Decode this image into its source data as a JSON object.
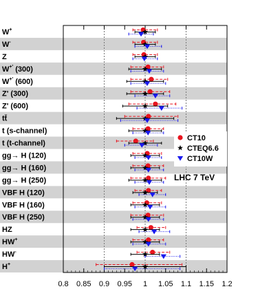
{
  "chart_data": {
    "type": "scatter",
    "orientation": "horizontal",
    "annotation": "LHC 7 TeV",
    "xlim": [
      0.8,
      1.2
    ],
    "xticks": [
      "0.8",
      "0.85",
      "0.9",
      "0.95",
      "1",
      "1.05",
      "1.1",
      "1.15",
      "1.2"
    ],
    "reference_lines": [
      0.9,
      1.0,
      1.1
    ],
    "legend_position": "right",
    "colors": {
      "CT10": "#e8141e",
      "CTEQ6.6": "#000000",
      "CT10W": "#1a1aee",
      "band": "#d2d2d2"
    },
    "categories": [
      {
        "base": "W",
        "sup": "+",
        "rest": ""
      },
      {
        "base": "W",
        "sup": "-",
        "rest": ""
      },
      {
        "base": "Z",
        "sup": "",
        "rest": ""
      },
      {
        "base": "W",
        "sup": "+'",
        "rest": " (300)"
      },
      {
        "base": "W",
        "sup": "+'",
        "rest": " (600)"
      },
      {
        "base": "Z'",
        "sup": "",
        "rest": " (300)"
      },
      {
        "base": "Z'",
        "sup": "",
        "rest": " (600)"
      },
      {
        "base": "tt̄",
        "sup": "",
        "rest": ""
      },
      {
        "base": "t (s-channel)",
        "sup": "",
        "rest": ""
      },
      {
        "base": "t (t-channel)",
        "sup": "",
        "rest": ""
      },
      {
        "base": "gg→ H (120)",
        "sup": "",
        "rest": ""
      },
      {
        "base": "gg→ H (160)",
        "sup": "",
        "rest": ""
      },
      {
        "base": "gg→ H (250)",
        "sup": "",
        "rest": ""
      },
      {
        "base": "VBF H (120)",
        "sup": "",
        "rest": ""
      },
      {
        "base": "VBF H (160)",
        "sup": "",
        "rest": ""
      },
      {
        "base": "VBF H (250)",
        "sup": "",
        "rest": ""
      },
      {
        "base": "HZ",
        "sup": "",
        "rest": ""
      },
      {
        "base": "HW",
        "sup": "+",
        "rest": ""
      },
      {
        "base": "HW",
        "sup": "-",
        "rest": ""
      },
      {
        "base": "H",
        "sup": "+",
        "rest": ""
      }
    ],
    "series": [
      {
        "name": "CT10",
        "marker": "circle",
        "color": "#e8141e",
        "line": "dashed",
        "points": [
          {
            "value": 0.995,
            "err": [
              0.97,
              1.03
            ]
          },
          {
            "value": 0.996,
            "err": [
              0.97,
              1.03
            ]
          },
          {
            "value": 0.997,
            "err": [
              0.97,
              1.03
            ]
          },
          {
            "value": 1.007,
            "err": [
              0.965,
              1.045
            ]
          },
          {
            "value": 1.015,
            "err": [
              0.965,
              1.055
            ]
          },
          {
            "value": 1.012,
            "err": [
              0.965,
              1.06
            ]
          },
          {
            "value": 1.025,
            "err": [
              0.96,
              1.075
            ]
          },
          {
            "value": 1.008,
            "err": [
              0.95,
              1.08
            ]
          },
          {
            "value": 1.007,
            "err": [
              0.97,
              1.045
            ]
          },
          {
            "value": 0.977,
            "err": [
              0.93,
              1.02
            ]
          },
          {
            "value": 1.005,
            "err": [
              0.97,
              1.04
            ]
          },
          {
            "value": 1.007,
            "err": [
              0.97,
              1.045
            ]
          },
          {
            "value": 1.008,
            "err": [
              0.965,
              1.05
            ]
          },
          {
            "value": 1.008,
            "err": [
              0.975,
              1.04
            ]
          },
          {
            "value": 1.004,
            "err": [
              0.97,
              1.04
            ]
          },
          {
            "value": 1.007,
            "err": [
              0.965,
              1.045
            ]
          },
          {
            "value": 1.014,
            "err": [
              0.98,
              1.05
            ]
          },
          {
            "value": 1.008,
            "err": [
              0.97,
              1.045
            ]
          },
          {
            "value": 1.018,
            "err": [
              0.98,
              1.06
            ]
          },
          {
            "value": 0.968,
            "err": [
              0.88,
              1.09
            ]
          }
        ]
      },
      {
        "name": "CTEQ6.6",
        "marker": "star",
        "color": "#000000",
        "line": "solid",
        "points": [
          {
            "value": 1.0,
            "err": [
              0.975,
              1.025
            ]
          },
          {
            "value": 1.0,
            "err": [
              0.975,
              1.025
            ]
          },
          {
            "value": 1.0,
            "err": [
              0.975,
              1.025
            ]
          },
          {
            "value": 1.0,
            "err": [
              0.96,
              1.04
            ]
          },
          {
            "value": 1.0,
            "err": [
              0.955,
              1.045
            ]
          },
          {
            "value": 1.0,
            "err": [
              0.955,
              1.045
            ]
          },
          {
            "value": 1.0,
            "err": [
              0.945,
              1.055
            ]
          },
          {
            "value": 1.0,
            "err": [
              0.93,
              1.07
            ]
          },
          {
            "value": 1.0,
            "err": [
              0.96,
              1.04
            ]
          },
          {
            "value": 1.0,
            "err": [
              0.96,
              1.04
            ]
          },
          {
            "value": 1.0,
            "err": [
              0.965,
              1.035
            ]
          },
          {
            "value": 1.0,
            "err": [
              0.965,
              1.035
            ]
          },
          {
            "value": 1.0,
            "err": [
              0.96,
              1.04
            ]
          },
          {
            "value": 1.0,
            "err": [
              0.97,
              1.03
            ]
          },
          {
            "value": 1.0,
            "err": [
              0.965,
              1.035
            ]
          },
          {
            "value": 1.0,
            "err": [
              0.965,
              1.035
            ]
          },
          {
            "value": 1.0,
            "err": [
              0.965,
              1.035
            ]
          },
          {
            "value": 1.0,
            "err": [
              0.965,
              1.035
            ]
          },
          {
            "value": 1.0,
            "err": [
              0.965,
              1.035
            ]
          },
          {
            "value": 1.0,
            "err": [
              0.9,
              1.1
            ]
          }
        ]
      },
      {
        "name": "CT10W",
        "marker": "triangle-down",
        "color": "#1a1aee",
        "line": "dotted",
        "points": [
          {
            "value": 0.99,
            "err": [
              0.96,
              1.02
            ]
          },
          {
            "value": 1.005,
            "err": [
              0.975,
              1.04
            ]
          },
          {
            "value": 0.998,
            "err": [
              0.97,
              1.03
            ]
          },
          {
            "value": 1.01,
            "err": [
              0.965,
              1.045
            ]
          },
          {
            "value": 1.005,
            "err": [
              0.965,
              1.05
            ]
          },
          {
            "value": 1.025,
            "err": [
              0.975,
              1.06
            ]
          },
          {
            "value": 1.04,
            "err": [
              0.98,
              1.09
            ]
          },
          {
            "value": 1.005,
            "err": [
              0.94,
              1.08
            ]
          },
          {
            "value": 1.007,
            "err": [
              0.97,
              1.045
            ]
          },
          {
            "value": 0.992,
            "err": [
              0.95,
              1.03
            ]
          },
          {
            "value": 1.008,
            "err": [
              0.975,
              1.04
            ]
          },
          {
            "value": 1.008,
            "err": [
              0.975,
              1.045
            ]
          },
          {
            "value": 1.01,
            "err": [
              0.975,
              1.045
            ]
          },
          {
            "value": 1.018,
            "err": [
              0.985,
              1.05
            ]
          },
          {
            "value": 1.012,
            "err": [
              0.975,
              1.05
            ]
          },
          {
            "value": 1.008,
            "err": [
              0.97,
              1.045
            ]
          },
          {
            "value": 1.022,
            "err": [
              0.985,
              1.06
            ]
          },
          {
            "value": 1.008,
            "err": [
              0.97,
              1.05
            ]
          },
          {
            "value": 1.045,
            "err": [
              1.0,
              1.085
            ]
          },
          {
            "value": 0.975,
            "err": [
              0.9,
              1.085
            ]
          }
        ]
      }
    ]
  }
}
